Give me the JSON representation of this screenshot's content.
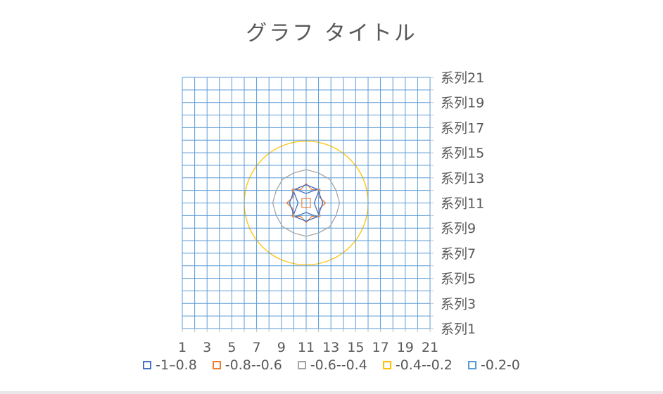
{
  "chart_data": {
    "type": "contour",
    "title": "グラフ タイトル",
    "x_tick_labels": [
      "1",
      "3",
      "5",
      "7",
      "9",
      "11",
      "13",
      "15",
      "17",
      "19",
      "21"
    ],
    "y_tick_labels": [
      "系列1",
      "系列3",
      "系列5",
      "系列7",
      "系列9",
      "系列11",
      "系列13",
      "系列15",
      "系列17",
      "系列19",
      "系列21"
    ],
    "x_categories": [
      1,
      2,
      3,
      4,
      5,
      6,
      7,
      8,
      9,
      10,
      11,
      12,
      13,
      14,
      15,
      16,
      17,
      18,
      19,
      20,
      21
    ],
    "series_count": 21,
    "center": {
      "x": 11,
      "y": 11
    },
    "bands": [
      {
        "label": "-1–0.8",
        "range": [
          -1,
          -0.8
        ],
        "color": "#4472c4",
        "approx_radius": 1.2,
        "shape": "diamond"
      },
      {
        "label": "-0.8--0.6",
        "range": [
          -0.8,
          -0.6
        ],
        "color": "#ed7d31",
        "approx_radius": 1.5,
        "shape": "star"
      },
      {
        "label": "-0.6--0.4",
        "range": [
          -0.6,
          -0.4
        ],
        "color": "#a5a5a5",
        "approx_radius": 2.7,
        "shape": "octagon"
      },
      {
        "label": "-0.4--0.2",
        "range": [
          -0.4,
          -0.2
        ],
        "color": "#ffc000",
        "approx_radius": 5.0,
        "shape": "circle"
      },
      {
        "label": "-0.2-0",
        "range": [
          -0.2,
          0
        ],
        "color": "#5b9bd5",
        "approx_radius": null,
        "shape": "background"
      }
    ],
    "legend_position": "bottom",
    "grid": true
  }
}
